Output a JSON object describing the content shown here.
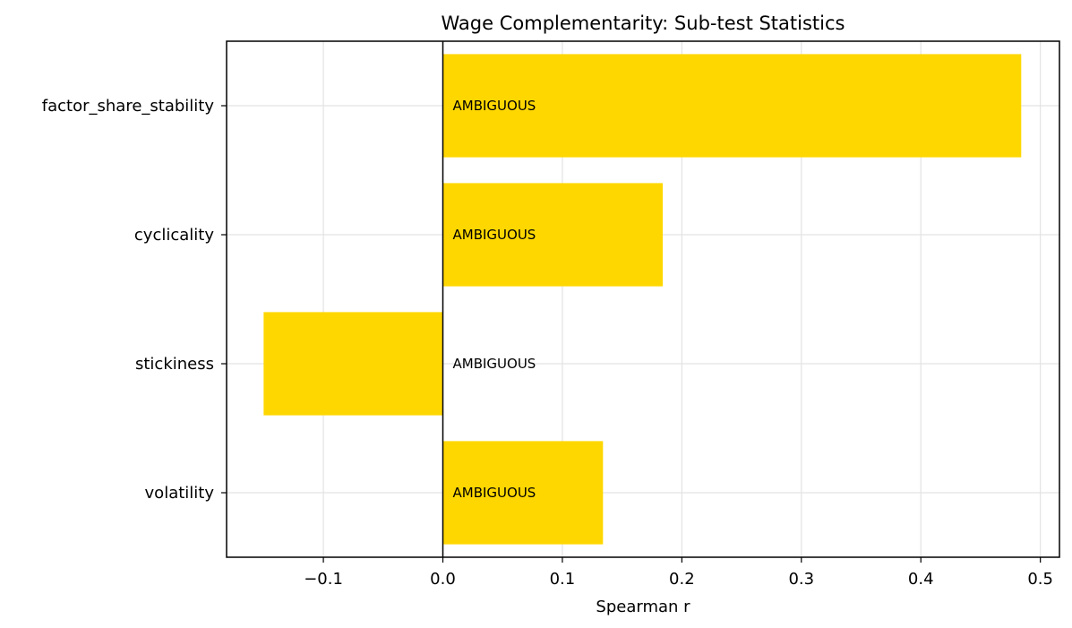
{
  "chart_data": {
    "type": "bar",
    "orientation": "horizontal",
    "title": "Wage Complementarity: Sub-test Statistics",
    "xlabel": "Spearman r",
    "ylabel": "",
    "categories": [
      "factor_share_stability",
      "cyclicality",
      "stickiness",
      "volatility"
    ],
    "values": [
      0.484,
      0.184,
      -0.15,
      0.134
    ],
    "bar_labels": [
      "AMBIGUOUS",
      "AMBIGUOUS",
      "AMBIGUOUS",
      "AMBIGUOUS"
    ],
    "xlim": [
      -0.181,
      0.516
    ],
    "xticks": [
      -0.1,
      0.0,
      0.1,
      0.2,
      0.3,
      0.4,
      0.5
    ],
    "xtick_labels": [
      "−0.1",
      "0.0",
      "0.1",
      "0.2",
      "0.3",
      "0.4",
      "0.5"
    ],
    "grid": true,
    "reference_line": 0.0,
    "bar_color": "#FFD700",
    "legend": null
  }
}
